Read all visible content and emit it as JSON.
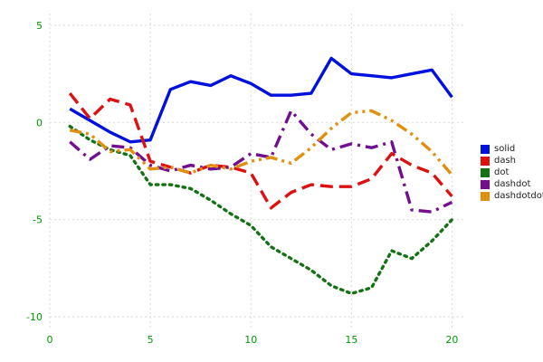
{
  "chart_data": {
    "type": "line",
    "title": "",
    "xlabel": "",
    "ylabel": "",
    "xlim": [
      0,
      20.7
    ],
    "ylim": [
      -10.6,
      5.6
    ],
    "x_ticks": [
      0,
      5,
      10,
      15,
      20
    ],
    "y_ticks": [
      -10,
      -5,
      0,
      5
    ],
    "grid": true,
    "grid_color": "#d9d9d9",
    "tick_label_color": "#009900",
    "legend_position": "right",
    "x": [
      1,
      2,
      3,
      4,
      5,
      6,
      7,
      8,
      9,
      10,
      11,
      12,
      13,
      14,
      15,
      16,
      17,
      18,
      19,
      20
    ],
    "series": [
      {
        "name": "solid",
        "color": "#0010dd",
        "dash_style": "solid",
        "values": [
          0.7,
          0.1,
          -0.5,
          -1.0,
          -0.9,
          1.7,
          2.1,
          1.9,
          2.4,
          2.0,
          1.4,
          1.4,
          1.5,
          3.3,
          2.5,
          2.4,
          2.3,
          2.5,
          2.7,
          1.3
        ]
      },
      {
        "name": "dash",
        "color": "#dd1111",
        "dash_style": "dash",
        "values": [
          1.5,
          0.2,
          1.2,
          0.9,
          -2.0,
          -2.3,
          -2.6,
          -2.2,
          -2.3,
          -2.6,
          -4.4,
          -3.6,
          -3.2,
          -3.3,
          -3.3,
          -2.9,
          -1.6,
          -2.2,
          -2.6,
          -3.8
        ]
      },
      {
        "name": "dot",
        "color": "#147214",
        "dash_style": "dot",
        "values": [
          -0.2,
          -0.9,
          -1.4,
          -1.7,
          -3.2,
          -3.2,
          -3.4,
          -4.0,
          -4.7,
          -5.3,
          -6.4,
          -7.0,
          -7.6,
          -8.4,
          -8.8,
          -8.5,
          -6.6,
          -7.0,
          -6.1,
          -5.0
        ]
      },
      {
        "name": "dashdot",
        "color": "#730f8e",
        "dash_style": "dashdot",
        "values": [
          -1.0,
          -1.9,
          -1.2,
          -1.3,
          -2.2,
          -2.5,
          -2.2,
          -2.4,
          -2.3,
          -1.6,
          -1.8,
          0.6,
          -0.6,
          -1.4,
          -1.1,
          -1.3,
          -1.0,
          -4.5,
          -4.6,
          -4.1
        ]
      },
      {
        "name": "dashdotdot",
        "color": "#e0900e",
        "dash_style": "dashdotdot",
        "values": [
          -0.4,
          -0.6,
          -1.5,
          -1.4,
          -2.4,
          -2.3,
          -2.6,
          -2.2,
          -2.4,
          -2.0,
          -1.8,
          -2.1,
          -1.3,
          -0.3,
          0.5,
          0.6,
          0.1,
          -0.6,
          -1.5,
          -2.7
        ]
      }
    ]
  }
}
